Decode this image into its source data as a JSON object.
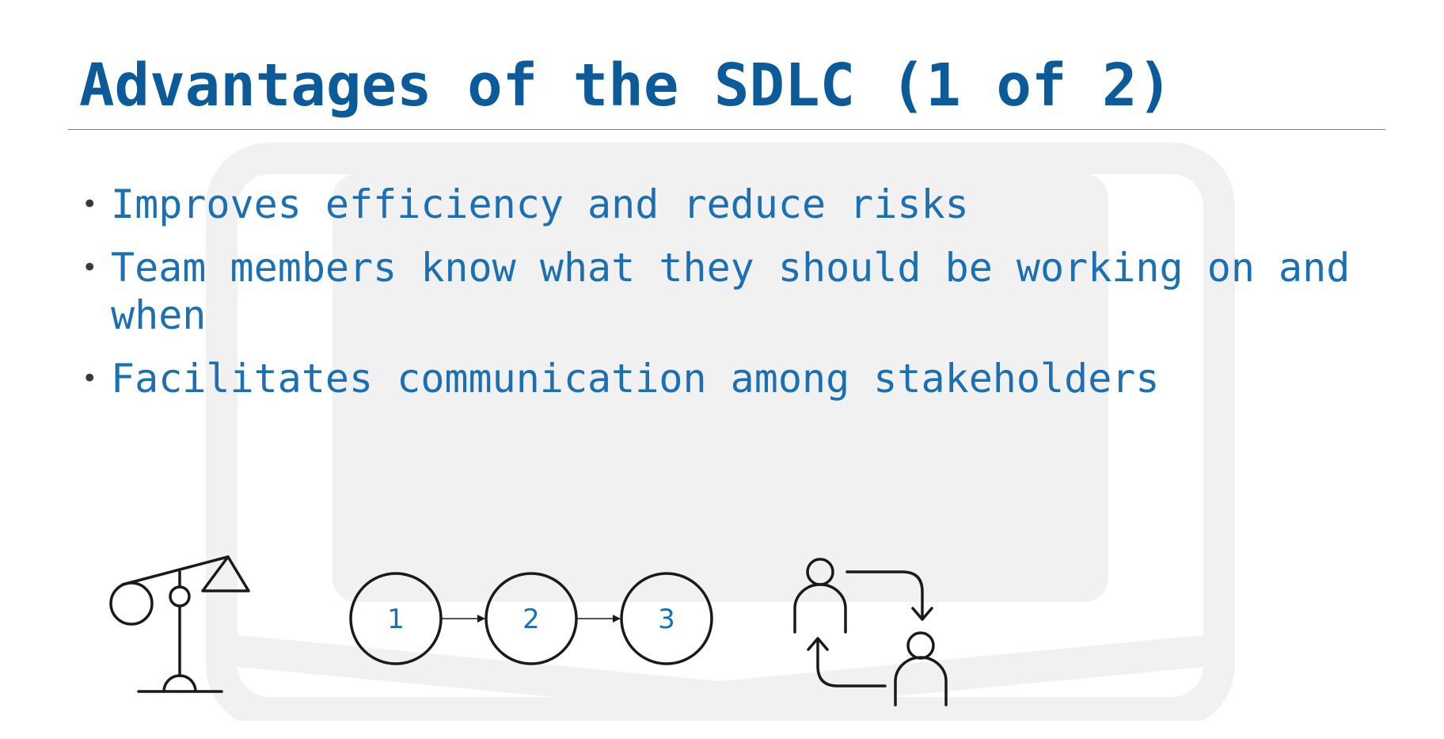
{
  "slide": {
    "title": "Advantages of the SDLC (1 of 2)",
    "bullets": [
      "Improves efficiency and reduce risks",
      "Team members know what they should be working on and when",
      "Facilitates communication among stakeholders"
    ]
  },
  "icons": {
    "balance": "balance-scale-icon",
    "process": "process-flow-icon",
    "exchange": "people-exchange-icon"
  },
  "process_steps": [
    "1",
    "2",
    "3"
  ],
  "colors": {
    "title": "#0b5a99",
    "bullet_text": "#1b6fb3",
    "icon_stroke": "#1a1a1a",
    "rule": "#5d8aa8"
  }
}
